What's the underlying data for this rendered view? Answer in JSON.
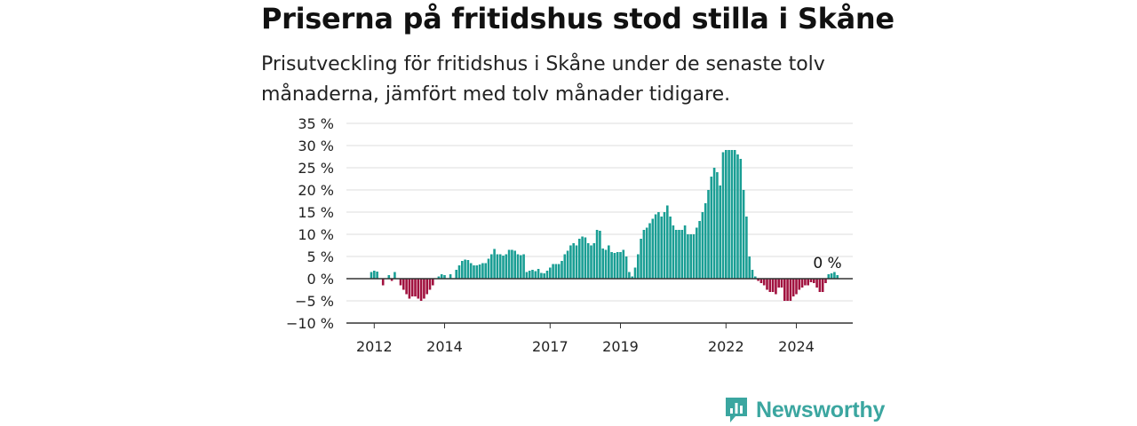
{
  "title": "Priserna på fritidshus stod stilla i Skåne",
  "subtitle": "Prisutveckling för fritidshus i Skåne under de senaste tolv månaderna, jämfört med tolv månader tidigare.",
  "brand": {
    "name": "Newsworthy",
    "color": "#3ba6a0"
  },
  "colors": {
    "positive": "#1a9e94",
    "negative": "#a1123f",
    "grid": "#dddddd",
    "axis": "#333333"
  },
  "chart_data": {
    "type": "bar",
    "title": "Priserna på fritidshus stod stilla i Skåne",
    "xlabel": "",
    "ylabel": "",
    "ylim": [
      -10,
      35
    ],
    "y_ticks": [
      35,
      30,
      25,
      20,
      15,
      10,
      5,
      0,
      -5,
      -10
    ],
    "y_tick_labels": [
      "35 %",
      "30 %",
      "25 %",
      "20 %",
      "15 %",
      "10 %",
      "5 %",
      "0 %",
      "−5 %",
      "−10 %"
    ],
    "x_tick_labels": [
      "2012",
      "2014",
      "2017",
      "2019",
      "2022",
      "2024"
    ],
    "x_tick_months": [
      1,
      25,
      61,
      85,
      121,
      145
    ],
    "start": "2012-01",
    "end": "2024-11",
    "annotation": {
      "text": "0 %",
      "month": 155
    },
    "grid": true,
    "legend": "none",
    "values": [
      1.5,
      1.8,
      1.6,
      0,
      -1.5,
      0,
      0.8,
      -0.5,
      1.5,
      0,
      -1.5,
      -2.5,
      -3.5,
      -4.5,
      -4,
      -4,
      -4.5,
      -5,
      -4.5,
      -3.5,
      -2.5,
      -1.5,
      0,
      0.5,
      1,
      0.8,
      0,
      1,
      0,
      2,
      3,
      4,
      4.3,
      4.2,
      3.5,
      3,
      3,
      3.2,
      3.5,
      3.5,
      4.5,
      5.5,
      6.7,
      5.5,
      5.5,
      5.2,
      5.5,
      6.5,
      6.5,
      6.3,
      5.5,
      5.3,
      5.5,
      1.5,
      1.8,
      2,
      1.7,
      2.2,
      1.3,
      1.2,
      1.8,
      2.5,
      3.3,
      3.3,
      3.3,
      4,
      5.5,
      6.3,
      7.5,
      8,
      7.5,
      9,
      9.5,
      9.3,
      8,
      7.5,
      8,
      11,
      10.8,
      6.8,
      6.5,
      7.5,
      6,
      5.8,
      6,
      6,
      6.5,
      5,
      1.5,
      0.5,
      2.5,
      5.5,
      9,
      11,
      11.5,
      12.5,
      13.5,
      14.5,
      15,
      14,
      15,
      16.5,
      14,
      12,
      11,
      11,
      11,
      12,
      10,
      10,
      10,
      11.5,
      13,
      15,
      17,
      20,
      23,
      25,
      24,
      21,
      28.5,
      29,
      29,
      29,
      29,
      28,
      27,
      20,
      14,
      5,
      2,
      0.5,
      -0.5,
      -1,
      -1.5,
      -2.5,
      -3,
      -3,
      -3.5,
      -2,
      -2,
      -5,
      -5,
      -5,
      -4,
      -3.5,
      -2.5,
      -2,
      -1.5,
      -1.5,
      -0.8,
      -1,
      -2,
      -3,
      -3,
      -1,
      1,
      1.2,
      1.5,
      0.8
    ]
  }
}
